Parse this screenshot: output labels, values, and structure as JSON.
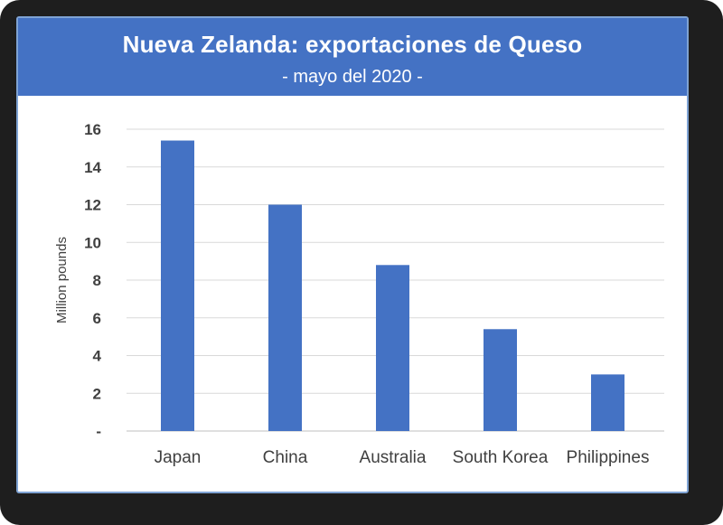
{
  "chart_data": {
    "type": "bar",
    "title": "Nueva Zelanda: exportaciones de Queso",
    "subtitle": "- mayo del 2020 -",
    "ylabel": "Million pounds",
    "xlabel": "",
    "categories": [
      "Japan",
      "China",
      "Australia",
      "South Korea",
      "Philippines"
    ],
    "values": [
      15.4,
      12.0,
      8.8,
      5.4,
      3.0
    ],
    "ylim": [
      0,
      16
    ],
    "yticks": [
      "-",
      "2",
      "4",
      "6",
      "8",
      "10",
      "12",
      "14",
      "16"
    ],
    "grid": true,
    "bar_color": "#4472c4",
    "header_color": "#4472c4"
  }
}
